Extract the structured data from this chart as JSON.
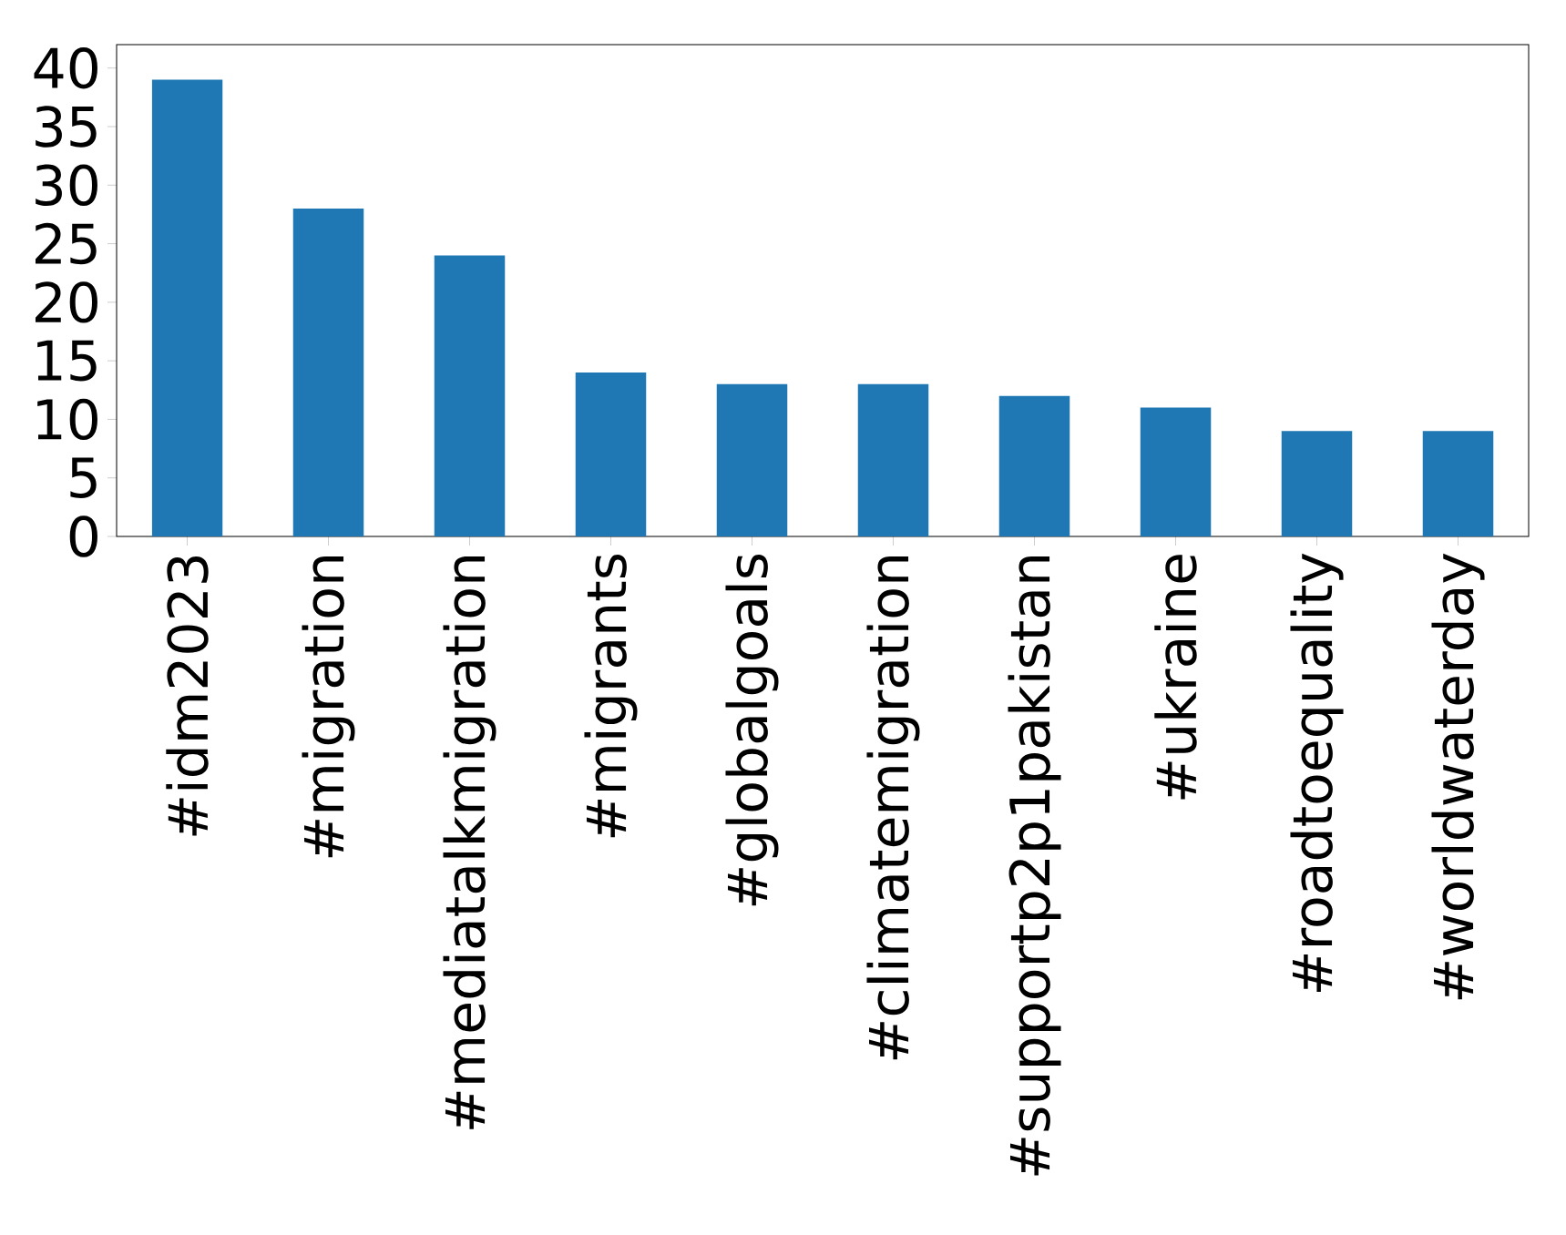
{
  "chart_data": {
    "type": "bar",
    "categories": [
      "#idm2023",
      "#migration",
      "#mediatalkmigration",
      "#migrants",
      "#globalgoals",
      "#climatemigration",
      "#supportp2p1pakistan",
      "#ukraine",
      "#roadtoequality",
      "#worldwaterday"
    ],
    "values": [
      39,
      28,
      24,
      14,
      13,
      13,
      12,
      11,
      9,
      9
    ],
    "color": "#1f77b4",
    "ylim": [
      0,
      42
    ],
    "yticks": [
      0,
      5,
      10,
      15,
      20,
      25,
      30,
      35,
      40
    ]
  }
}
